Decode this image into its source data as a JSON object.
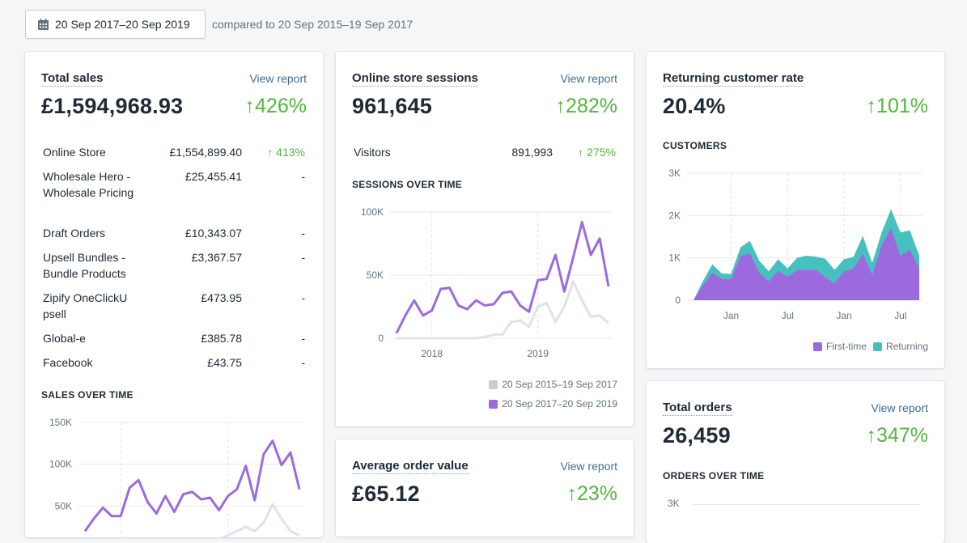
{
  "header": {
    "date_range": "20 Sep 2017–20 Sep 2019",
    "comparison": "compared to 20 Sep 2015–19 Sep 2017"
  },
  "colors": {
    "accent_purple": "#9c6ade",
    "returning_teal": "#47c1bf",
    "previous_gray": "#dfe3e8",
    "positive": "#50b83c",
    "link": "#3f6d8e"
  },
  "total_sales": {
    "title": "Total sales",
    "view_report": "View report",
    "value": "£1,594,968.93",
    "change": "↑426%",
    "rows": [
      {
        "name": "Online Store",
        "value": "£1,554,899.40",
        "change": "↑ 413%"
      },
      {
        "name": "Wholesale Hero - Wholesale Pricing",
        "value": "£25,455.41",
        "change": "-"
      },
      {
        "name": "Draft Orders",
        "value": "£10,343.07",
        "change": "-"
      },
      {
        "name": "Upsell Bundles - Bundle Products",
        "value": "£3,367.57",
        "change": "-"
      },
      {
        "name": "Zipify OneClickUpsell",
        "value": "£473.95",
        "change": "-"
      },
      {
        "name": "Global-e",
        "value": "£385.78",
        "change": "-"
      },
      {
        "name": "Facebook",
        "value": "£43.75",
        "change": "-"
      }
    ],
    "chart_title": "SALES OVER TIME"
  },
  "sessions": {
    "title": "Online store sessions",
    "view_report": "View report",
    "value": "961,645",
    "change": "↑282%",
    "visitors_label": "Visitors",
    "visitors_value": "891,993",
    "visitors_change": "↑ 275%",
    "chart_title": "SESSIONS OVER TIME"
  },
  "aov": {
    "title": "Average order value",
    "view_report": "View report",
    "value": "£65.12",
    "change": "↑23%"
  },
  "returning": {
    "title": "Returning customer rate",
    "value": "20.4%",
    "change": "↑101%",
    "chart_title": "CUSTOMERS"
  },
  "orders": {
    "title": "Total orders",
    "view_report": "View report",
    "value": "26,459",
    "change": "↑347%",
    "chart_title": "ORDERS OVER TIME",
    "y_top_label": "3K"
  },
  "chart_data": [
    {
      "id": "sales",
      "type": "line",
      "title": "SALES OVER TIME",
      "ylim": [
        0,
        150000
      ],
      "yticks": [
        {
          "v": 50000,
          "label": "50K"
        },
        {
          "v": 100000,
          "label": "100K"
        },
        {
          "v": 150000,
          "label": "150K"
        }
      ],
      "vlines": [
        4,
        16
      ],
      "series": [
        {
          "name": "20 Sep 2015–19 Sep 2017",
          "color": "#dfe3e8",
          "values": [
            0,
            0,
            0,
            0,
            0,
            0,
            0,
            0,
            0,
            0,
            0,
            0,
            2000,
            4000,
            5000,
            10000,
            15000,
            20000,
            25000,
            20000,
            30000,
            52000,
            35000,
            20000,
            15000
          ]
        },
        {
          "name": "20 Sep 2017–20 Sep 2019",
          "color": "#9c6ade",
          "values": [
            20000,
            35000,
            48000,
            38000,
            38000,
            72000,
            81000,
            55000,
            41000,
            62000,
            43000,
            64000,
            67000,
            58000,
            60000,
            45000,
            62000,
            70000,
            98000,
            57000,
            112000,
            128000,
            99000,
            114000,
            70000
          ]
        }
      ]
    },
    {
      "id": "sessions",
      "type": "line",
      "title": "SESSIONS OVER TIME",
      "ylim": [
        0,
        100000
      ],
      "yticks": [
        {
          "v": 0,
          "label": "0"
        },
        {
          "v": 50000,
          "label": "50K"
        },
        {
          "v": 100000,
          "label": "100K"
        }
      ],
      "xticks": [
        {
          "i": 4,
          "label": "2018"
        },
        {
          "i": 16,
          "label": "2019"
        }
      ],
      "vlines": [
        4,
        16
      ],
      "series": [
        {
          "name": "20 Sep 2015–19 Sep 2017",
          "color": "#dfe3e8",
          "values": [
            0,
            0,
            0,
            0,
            0,
            0,
            0,
            0,
            0,
            0,
            1000,
            3000,
            3000,
            13000,
            14000,
            9000,
            25000,
            28000,
            13000,
            25000,
            45000,
            30000,
            17000,
            18000,
            12000
          ]
        },
        {
          "name": "20 Sep 2017–20 Sep 2019",
          "color": "#9c6ade",
          "values": [
            4000,
            18000,
            30000,
            18000,
            22000,
            39000,
            40000,
            26000,
            23000,
            30000,
            26000,
            27000,
            36000,
            37000,
            26000,
            21000,
            46000,
            47000,
            66000,
            37000,
            64000,
            92000,
            66000,
            79000,
            41000
          ]
        }
      ],
      "legend": "bottom-right"
    },
    {
      "id": "customers",
      "type": "area",
      "stacked": true,
      "title": "CUSTOMERS",
      "ylim": [
        0,
        3000
      ],
      "yticks": [
        {
          "v": 0,
          "label": "0"
        },
        {
          "v": 1000,
          "label": "1K"
        },
        {
          "v": 2000,
          "label": "2K"
        },
        {
          "v": 3000,
          "label": "3K"
        }
      ],
      "xticks": [
        {
          "i": 4,
          "label": "Jan"
        },
        {
          "i": 10,
          "label": "Jul"
        },
        {
          "i": 16,
          "label": "Jan"
        },
        {
          "i": 22,
          "label": "Jul"
        }
      ],
      "vlines": [
        4,
        10,
        16,
        22
      ],
      "series": [
        {
          "name": "First-time",
          "color": "#9c6ade",
          "values": [
            0,
            350,
            650,
            500,
            500,
            1050,
            1100,
            650,
            450,
            700,
            550,
            720,
            720,
            720,
            550,
            400,
            680,
            750,
            1100,
            600,
            1300,
            1700,
            1050,
            1200,
            750
          ]
        },
        {
          "name": "Returning",
          "color": "#47c1bf",
          "values": [
            0,
            100,
            200,
            130,
            120,
            200,
            300,
            280,
            230,
            270,
            200,
            280,
            330,
            310,
            430,
            320,
            290,
            270,
            420,
            280,
            300,
            450,
            550,
            450,
            300
          ]
        }
      ],
      "legend": "bottom-right"
    }
  ]
}
